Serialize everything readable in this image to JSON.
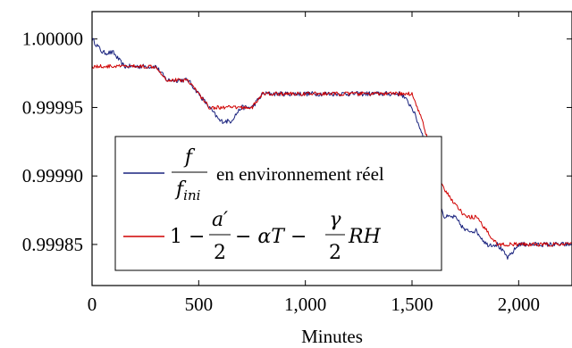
{
  "chart_data": {
    "type": "line",
    "xlabel": "Minutes",
    "ylabel": "",
    "xlim": [
      0,
      2250
    ],
    "ylim": [
      0.99982,
      1.00002
    ],
    "x_ticks": [
      0,
      500,
      1000,
      1500,
      2000
    ],
    "x_tick_labels": [
      "0",
      "500",
      "1,000",
      "1,500",
      "2,000"
    ],
    "y_ticks": [
      0.99985,
      0.9999,
      0.99995,
      1.0
    ],
    "y_tick_labels": [
      "0.99985",
      "0.99990",
      "0.99995",
      "1.00000"
    ],
    "legend_position": "lower-left",
    "series": [
      {
        "name": "f / f_ini en environnement réel",
        "color": "#1a237e",
        "x": [
          0,
          50,
          100,
          150,
          200,
          250,
          300,
          350,
          400,
          450,
          500,
          550,
          600,
          650,
          700,
          750,
          800,
          850,
          900,
          950,
          1000,
          1050,
          1100,
          1150,
          1200,
          1250,
          1300,
          1350,
          1400,
          1450,
          1500,
          1550,
          1600,
          1650,
          1700,
          1750,
          1800,
          1850,
          1900,
          1950,
          2000,
          2050,
          2100,
          2150,
          2200,
          2250
        ],
        "values": [
          1.0,
          0.99999,
          0.99999,
          0.99998,
          0.99998,
          0.99998,
          0.99998,
          0.99997,
          0.99997,
          0.99997,
          0.99996,
          0.99995,
          0.99994,
          0.99994,
          0.99995,
          0.99995,
          0.99996,
          0.99996,
          0.99996,
          0.99996,
          0.99996,
          0.99996,
          0.99996,
          0.99996,
          0.99996,
          0.99996,
          0.99996,
          0.99996,
          0.99996,
          0.99996,
          0.99995,
          0.99993,
          0.9999,
          0.99987,
          0.99987,
          0.99986,
          0.99986,
          0.99985,
          0.99985,
          0.99984,
          0.99985,
          0.99985,
          0.99985,
          0.99985,
          0.99985,
          0.99985
        ]
      },
      {
        "name": "1 − a′/2 − αT − γ/2 RH",
        "color": "#d00000",
        "x": [
          0,
          50,
          100,
          150,
          200,
          250,
          300,
          350,
          400,
          450,
          500,
          550,
          600,
          650,
          700,
          750,
          800,
          850,
          900,
          950,
          1000,
          1050,
          1100,
          1150,
          1200,
          1250,
          1300,
          1350,
          1400,
          1450,
          1500,
          1550,
          1600,
          1650,
          1700,
          1750,
          1800,
          1850,
          1900,
          1950,
          2000,
          2050,
          2100,
          2150,
          2200,
          2250
        ],
        "values": [
          0.99998,
          0.99998,
          0.99998,
          0.99998,
          0.99998,
          0.99998,
          0.99998,
          0.99997,
          0.99997,
          0.99997,
          0.99996,
          0.99995,
          0.99995,
          0.99995,
          0.99995,
          0.99995,
          0.99996,
          0.99996,
          0.99996,
          0.99996,
          0.99996,
          0.99996,
          0.99996,
          0.99996,
          0.99996,
          0.99996,
          0.99996,
          0.99996,
          0.99996,
          0.99996,
          0.99996,
          0.99994,
          0.99991,
          0.99989,
          0.99988,
          0.99987,
          0.99987,
          0.99986,
          0.99985,
          0.99985,
          0.99985,
          0.99985,
          0.99985,
          0.99985,
          0.99985,
          0.99985
        ]
      }
    ]
  },
  "legend": {
    "entry1": {
      "numerator": "f",
      "denominator": "f",
      "denominator_sub": "ini",
      "suffix": "en environnement réel"
    },
    "entry2": {
      "part1": "1 −",
      "frac1_num": "a′",
      "frac1_den": "2",
      "part2": "− αT −",
      "frac2_num": "γ",
      "frac2_den": "2",
      "part3": "RH"
    }
  }
}
